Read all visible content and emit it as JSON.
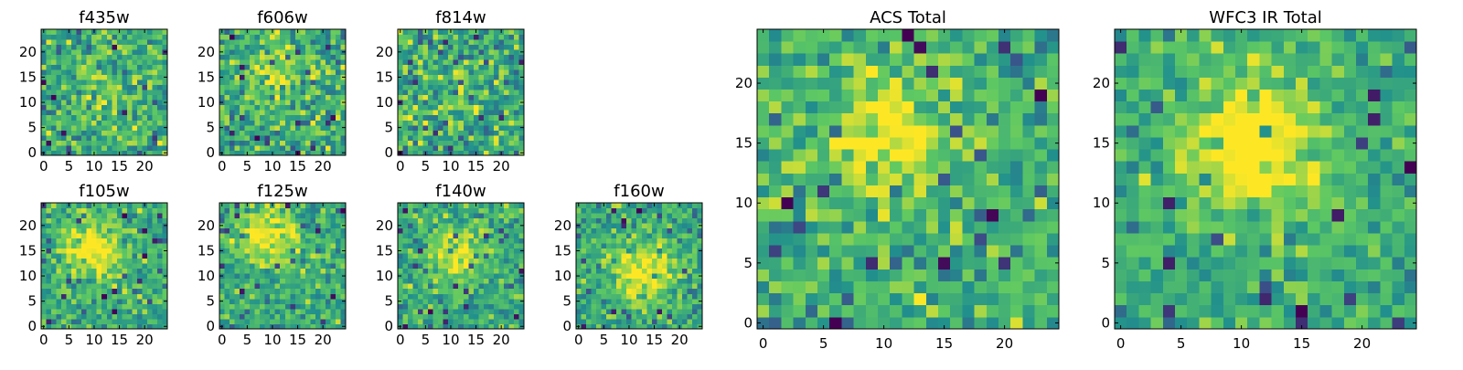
{
  "figure": {
    "colormap_name": "viridis",
    "colormap_stops": [
      "#440154",
      "#3b528b",
      "#21908d",
      "#5dc863",
      "#fde725"
    ]
  },
  "chart_data": [
    {
      "type": "heatmap",
      "title": "f435w",
      "grid_size": 25,
      "xlim": [
        -0.5,
        24.5
      ],
      "ylim": [
        -0.5,
        24.5
      ],
      "xticks": [
        0,
        5,
        10,
        15,
        20
      ],
      "yticks": [
        0,
        5,
        10,
        15,
        20
      ],
      "values_description": "noisy 25x25 pixel intensity grid, normalized 0-1, faint source near center",
      "center": [
        12,
        12
      ],
      "source_amplitude": 0.15,
      "noise_amplitude": 0.55,
      "seed": 11
    },
    {
      "type": "heatmap",
      "title": "f606w",
      "grid_size": 25,
      "xlim": [
        -0.5,
        24.5
      ],
      "ylim": [
        -0.5,
        24.5
      ],
      "xticks": [
        0,
        5,
        10,
        15,
        20
      ],
      "yticks": [
        0,
        5,
        10,
        15,
        20
      ],
      "values_description": "noisy 25x25 pixel intensity grid, normalized 0-1, source near center",
      "center": [
        11,
        15
      ],
      "source_amplitude": 0.25,
      "noise_amplitude": 0.55,
      "seed": 23
    },
    {
      "type": "heatmap",
      "title": "f814w",
      "grid_size": 25,
      "xlim": [
        -0.5,
        24.5
      ],
      "ylim": [
        -0.5,
        24.5
      ],
      "xticks": [
        0,
        5,
        10,
        15,
        20
      ],
      "yticks": [
        0,
        5,
        10,
        15,
        20
      ],
      "values_description": "noisy 25x25 pixel intensity grid, normalized 0-1",
      "center": [
        12,
        12
      ],
      "source_amplitude": 0.1,
      "noise_amplitude": 0.6,
      "seed": 37
    },
    {
      "type": "heatmap",
      "title": "f105w",
      "grid_size": 25,
      "xlim": [
        -0.5,
        24.5
      ],
      "ylim": [
        -0.5,
        24.5
      ],
      "xticks": [
        0,
        5,
        10,
        15,
        20
      ],
      "yticks": [
        0,
        5,
        10,
        15,
        20
      ],
      "values_description": "smoothed 25x25 intensity grid, normalized 0-1, bright source near (10,15)",
      "center": [
        10,
        15
      ],
      "source_amplitude": 0.4,
      "noise_amplitude": 0.45,
      "seed": 41
    },
    {
      "type": "heatmap",
      "title": "f125w",
      "grid_size": 25,
      "xlim": [
        -0.5,
        24.5
      ],
      "ylim": [
        -0.5,
        24.5
      ],
      "xticks": [
        0,
        5,
        10,
        15,
        20
      ],
      "yticks": [
        0,
        5,
        10,
        15,
        20
      ],
      "values_description": "smoothed 25x25 intensity grid, normalized 0-1, bright source near (9,18)",
      "center": [
        9,
        18
      ],
      "source_amplitude": 0.4,
      "noise_amplitude": 0.45,
      "seed": 53
    },
    {
      "type": "heatmap",
      "title": "f140w",
      "grid_size": 25,
      "xlim": [
        -0.5,
        24.5
      ],
      "ylim": [
        -0.5,
        24.5
      ],
      "xticks": [
        0,
        5,
        10,
        15,
        20
      ],
      "yticks": [
        0,
        5,
        10,
        15,
        20
      ],
      "values_description": "smoothed 25x25 intensity grid, normalized 0-1, source near center",
      "center": [
        11,
        14
      ],
      "source_amplitude": 0.35,
      "noise_amplitude": 0.45,
      "seed": 67
    },
    {
      "type": "heatmap",
      "title": "f160w",
      "grid_size": 25,
      "xlim": [
        -0.5,
        24.5
      ],
      "ylim": [
        -0.5,
        24.5
      ],
      "xticks": [
        0,
        5,
        10,
        15,
        20
      ],
      "yticks": [
        0,
        5,
        10,
        15,
        20
      ],
      "values_description": "smoothed 25x25 intensity grid, normalized 0-1, source near (13,11)",
      "center": [
        13,
        11
      ],
      "source_amplitude": 0.4,
      "noise_amplitude": 0.45,
      "seed": 79
    },
    {
      "type": "heatmap",
      "title": "ACS Total",
      "grid_size": 25,
      "xlim": [
        -0.5,
        24.5
      ],
      "ylim": [
        -0.5,
        24.5
      ],
      "xticks": [
        0,
        5,
        10,
        15,
        20
      ],
      "yticks": [
        0,
        5,
        10,
        15,
        20
      ],
      "values_description": "25x25 summed ACS intensity grid, normalized 0-1, bright blob near (10,16)",
      "center": [
        10,
        16
      ],
      "source_amplitude": 0.35,
      "noise_amplitude": 0.5,
      "seed": 97
    },
    {
      "type": "heatmap",
      "title": "WFC3 IR Total",
      "grid_size": 25,
      "xlim": [
        -0.5,
        24.5
      ],
      "ylim": [
        -0.5,
        24.5
      ],
      "xticks": [
        0,
        5,
        10,
        15,
        20
      ],
      "yticks": [
        0,
        5,
        10,
        15,
        20
      ],
      "values_description": "25x25 summed WFC3 IR intensity grid, normalized 0-1, bright extended source near (11,15)",
      "center": [
        11,
        15
      ],
      "source_amplitude": 0.5,
      "noise_amplitude": 0.4,
      "seed": 113
    }
  ]
}
